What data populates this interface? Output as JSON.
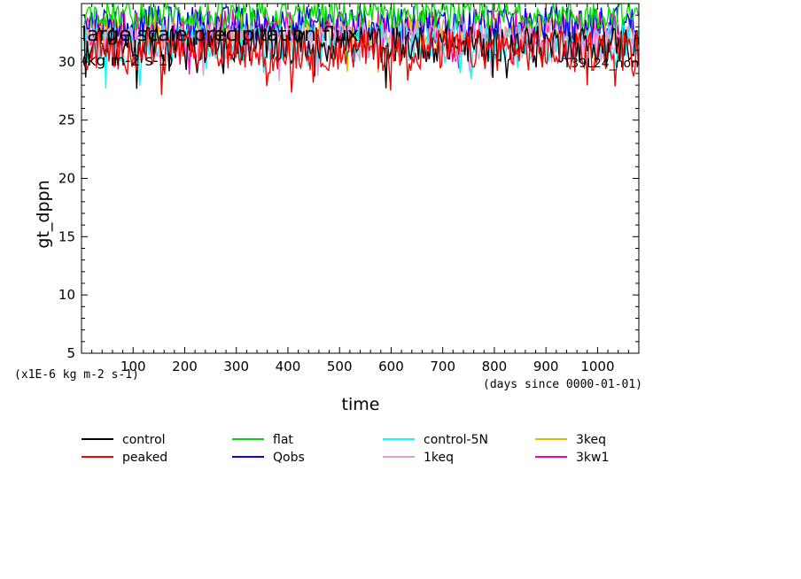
{
  "chart_data": {
    "type": "line",
    "title": "large scale precipitation flux",
    "units_label": "(kg m-2 s-1)",
    "run_label": "T39L24_non",
    "xlabel": "time",
    "ylabel": "gt_dppn",
    "y_scale_note": "(x1E-6 kg m-2 s-1)",
    "x_units_note": "(days since 0000-01-01)",
    "xlim": [
      0,
      1080
    ],
    "ylim": [
      5,
      35
    ],
    "xticks": [
      100,
      200,
      300,
      400,
      500,
      600,
      700,
      800,
      900,
      1000
    ],
    "yticks": [
      5,
      10,
      15,
      20,
      25,
      30
    ],
    "grid": false,
    "legend_position": "bottom",
    "series": [
      {
        "name": "control",
        "color": "#000000",
        "mean": 31.5,
        "amp": 1.6,
        "dip": 2.5
      },
      {
        "name": "peaked",
        "color": "#ff0000",
        "mean": 31.0,
        "amp": 1.8,
        "dip": 3.5
      },
      {
        "name": "flat",
        "color": "#00e000",
        "mean": 34.0,
        "amp": 1.2,
        "dip": 1.8
      },
      {
        "name": "Qobs",
        "color": "#0000ff",
        "mean": 33.3,
        "amp": 1.5,
        "dip": 2.0
      },
      {
        "name": "control-5N",
        "color": "#00ffff",
        "mean": 31.6,
        "amp": 1.7,
        "dip": 2.8
      },
      {
        "name": "1keq",
        "color": "#dda0dd",
        "mean": 31.8,
        "amp": 1.7,
        "dip": 3.0
      },
      {
        "name": "3keq",
        "color": "#f0b000",
        "mean": 32.5,
        "amp": 1.7,
        "dip": 2.2
      },
      {
        "name": "3kw1",
        "color": "#ff00b0",
        "mean": 32.8,
        "amp": 1.8,
        "dip": 2.4
      }
    ]
  }
}
